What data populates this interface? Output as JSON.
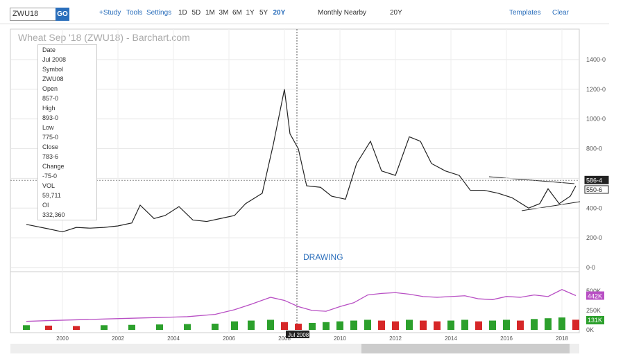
{
  "toolbar": {
    "symbol": "ZWU18",
    "go": "GO",
    "study": "+Study",
    "tools": "Tools",
    "settings": "Settings",
    "periods": [
      "1D",
      "5D",
      "1M",
      "3M",
      "6M",
      "1Y",
      "5Y",
      "20Y"
    ],
    "frequency": "Monthly Nearby",
    "range": "20Y",
    "templates": "Templates",
    "clear": "Clear"
  },
  "tooltip": {
    "rows": [
      [
        "Date",
        "Jul 2008"
      ],
      [
        "Symbol",
        "ZWU08"
      ],
      [
        "Open",
        "857-0"
      ],
      [
        "High",
        "893-0"
      ],
      [
        "Low",
        "775-0"
      ],
      [
        "Close",
        "783-6"
      ],
      [
        "Change",
        "-75-0"
      ],
      [
        "VOL",
        "59,711"
      ],
      [
        "OI",
        "332,360"
      ]
    ]
  },
  "annotations": {
    "drawing": "DRAWING",
    "crosshair": "Jul 2008"
  },
  "chart_data": [
    {
      "type": "line",
      "title": "Wheat Sep '18 (ZWU18) - Barchart.com",
      "x": [
        1998.7,
        1999.5,
        2000,
        2000.5,
        2001,
        2001.5,
        2002,
        2002.5,
        2002.8,
        2003.3,
        2003.7,
        2004.2,
        2004.7,
        2005.2,
        2005.7,
        2006.2,
        2006.6,
        2007.2,
        2007.6,
        2008,
        2008.2,
        2008.5,
        2008.8,
        2009.3,
        2009.7,
        2010.2,
        2010.6,
        2011.1,
        2011.5,
        2012,
        2012.5,
        2012.9,
        2013.3,
        2013.8,
        2014.3,
        2014.7,
        2015.2,
        2015.7,
        2016.2,
        2016.8,
        2017.2,
        2017.5,
        2017.9,
        2018.3,
        2018.5
      ],
      "series": [
        {
          "color": "#222222",
          "values": [
            290,
            260,
            240,
            270,
            265,
            270,
            280,
            300,
            420,
            330,
            350,
            410,
            320,
            310,
            330,
            350,
            430,
            500,
            830,
            1200,
            900,
            800,
            550,
            540,
            480,
            460,
            700,
            850,
            650,
            620,
            880,
            850,
            700,
            650,
            620,
            520,
            520,
            500,
            470,
            400,
            430,
            530,
            430,
            480,
            550
          ]
        }
      ],
      "price_labels": [
        {
          "value": 586.5,
          "label": "586-4"
        },
        {
          "value": 550.75,
          "label": "550-6"
        }
      ],
      "xlim": [
        1998.125,
        2018.625
      ],
      "xticks": [
        2000,
        2002,
        2004,
        2006,
        2008,
        2010,
        2012,
        2014,
        2016,
        2018
      ],
      "ylim": [
        0,
        1605
      ],
      "yticks": [
        {
          "value": 0,
          "label": "0-0"
        },
        {
          "value": 200,
          "label": "200-0"
        },
        {
          "value": 400,
          "label": "400-0"
        },
        {
          "value": 600,
          "label": "600-0"
        },
        {
          "value": 800,
          "label": "800-0"
        },
        {
          "value": 1000,
          "label": "1000-0"
        },
        {
          "value": 1200,
          "label": "1200-0"
        },
        {
          "value": 1400,
          "label": "1400-0"
        }
      ],
      "grid": true
    },
    {
      "type": "combo",
      "x": [
        1998.7,
        1999.5,
        2000.5,
        2001.5,
        2002.5,
        2003.5,
        2004.5,
        2005.5,
        2006.2,
        2006.8,
        2007.5,
        2008,
        2008.5,
        2009,
        2009.5,
        2010,
        2010.5,
        2011,
        2011.5,
        2012,
        2012.5,
        2013,
        2013.5,
        2014,
        2014.5,
        2015,
        2015.5,
        2016,
        2016.5,
        2017,
        2017.5,
        2018,
        2018.5
      ],
      "series": [
        {
          "type": "bar",
          "up_color": "#2ca02c",
          "down_color": "#d62728",
          "values": [
            60,
            55,
            50,
            60,
            65,
            70,
            75,
            80,
            110,
            120,
            130,
            100,
            80,
            90,
            100,
            110,
            120,
            130,
            120,
            110,
            130,
            120,
            110,
            120,
            130,
            110,
            120,
            130,
            120,
            140,
            150,
            160,
            131
          ]
        },
        {
          "type": "line",
          "color": "#b84fc4",
          "values": [
            110,
            120,
            130,
            140,
            150,
            160,
            170,
            200,
            260,
            330,
            420,
            380,
            300,
            250,
            240,
            300,
            350,
            450,
            470,
            480,
            460,
            430,
            420,
            430,
            440,
            400,
            390,
            430,
            420,
            450,
            430,
            520,
            442
          ],
          "last_label": "442K"
        }
      ],
      "volume_label": "131K",
      "xlim": [
        1998.125,
        2018.625
      ],
      "ylim": [
        0,
        750
      ],
      "yticks": [
        {
          "value": 0,
          "label": "0K"
        },
        {
          "value": 250,
          "label": "250K"
        },
        {
          "value": 500,
          "label": "500K"
        }
      ]
    }
  ]
}
